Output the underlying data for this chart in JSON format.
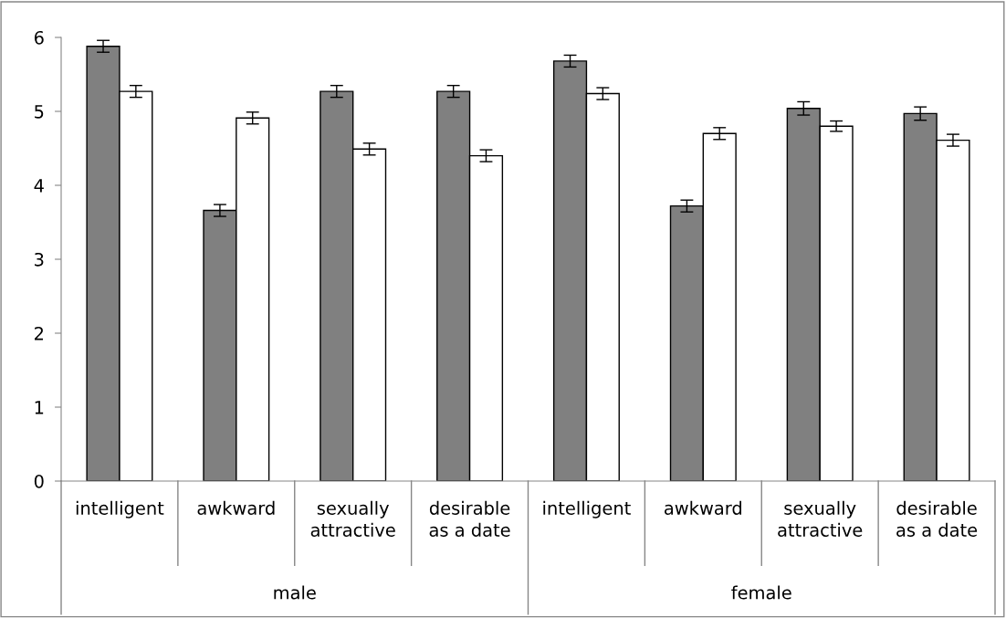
{
  "chart_data": {
    "type": "bar",
    "categories": [
      "intelligent",
      "awkward",
      "sexually attractive",
      "desirable as a date",
      "intelligent",
      "awkward",
      "sexually attractive",
      "desirable as a date"
    ],
    "series": [
      {
        "color": "#808080",
        "values": [
          5.88,
          3.66,
          5.27,
          5.27,
          5.68,
          3.72,
          5.04,
          4.97
        ],
        "errors": [
          0.08,
          0.08,
          0.08,
          0.08,
          0.08,
          0.08,
          0.09,
          0.09
        ]
      },
      {
        "color": "#ffffff",
        "values": [
          5.27,
          4.91,
          4.49,
          4.4,
          5.24,
          4.7,
          4.8,
          4.61
        ],
        "errors": [
          0.08,
          0.08,
          0.08,
          0.08,
          0.08,
          0.08,
          0.07,
          0.08
        ]
      }
    ],
    "annotations": [
      "male",
      "female"
    ],
    "ylim": [
      0,
      6
    ],
    "yticks": [
      0,
      1,
      2,
      3,
      4,
      5,
      6
    ],
    "grid": false,
    "legend": false
  }
}
